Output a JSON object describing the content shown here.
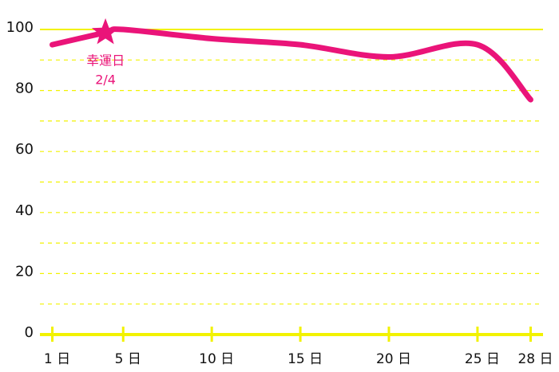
{
  "chart_data": {
    "type": "line",
    "x": [
      1,
      4,
      5,
      10,
      15,
      20,
      25,
      28
    ],
    "series": [
      {
        "color": "#ea1479",
        "values": [
          95,
          99,
          100,
          97,
          95,
          91,
          95,
          77
        ]
      }
    ],
    "xlim": [
      0.3,
      28.7
    ],
    "xticks": [
      {
        "value": 1,
        "label": "1 日"
      },
      {
        "value": 5,
        "label": "5 日"
      },
      {
        "value": 10,
        "label": "10 日"
      },
      {
        "value": 15,
        "label": "15 日"
      },
      {
        "value": 20,
        "label": "20 日"
      },
      {
        "value": 25,
        "label": "25 日"
      },
      {
        "value": 28,
        "label": "28 日"
      }
    ],
    "ylim": [
      0,
      100
    ],
    "yticks": [
      0,
      20,
      40,
      60,
      80,
      100
    ],
    "minor_grid": [
      10,
      30,
      50,
      70,
      90
    ],
    "grid": true,
    "grid_color": "#f2f200",
    "annotation": {
      "x": 4,
      "y": 99,
      "lines": [
        "幸運日",
        "2/4"
      ],
      "color": "#ea1479"
    }
  }
}
